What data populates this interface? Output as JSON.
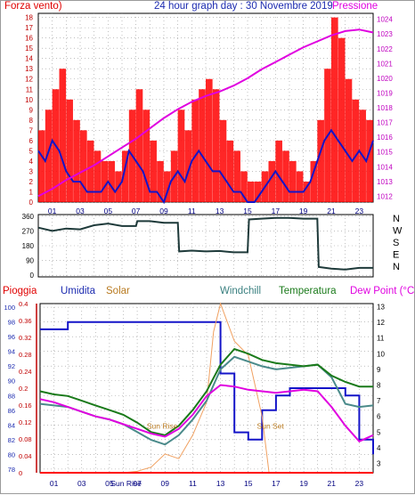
{
  "top": {
    "left_title": "Forza vento)",
    "center_title": "24 hour graph day : 30 Novembre 2019",
    "right_title": "Pressione"
  },
  "bottom": {
    "labels": {
      "rain": "Pioggia",
      "humidity": "Umidita",
      "solar": "Solar",
      "windchill": "Windchill",
      "temperature": "Temperatura",
      "dewpoint": "Dew Point (°C)"
    }
  },
  "chart_data": [
    {
      "type": "line",
      "x_tick_labels": [
        "01",
        "03",
        "05",
        "07",
        "09",
        "11",
        "13",
        "15",
        "17",
        "19",
        "21",
        "23"
      ],
      "yleft_ticks": [
        0,
        1,
        2,
        3,
        4,
        5,
        6,
        7,
        8,
        9,
        10,
        11,
        12,
        13,
        14,
        15,
        16,
        17,
        18
      ],
      "ylim_left": [
        0,
        18.4
      ],
      "yright_ticks": [
        1012,
        1013,
        1014,
        1015,
        1016,
        1017,
        1018,
        1019,
        1020,
        1021,
        1022,
        1023,
        1024
      ],
      "ylim_right": [
        1011.6,
        1024.4
      ],
      "colors": {
        "gust": "#ff0000",
        "wind": "#1414c8",
        "pressure": "#e000e0"
      },
      "series": [
        {
          "axis": "left",
          "role": "gust",
          "x": [
            0,
            0.5,
            1,
            1.5,
            2,
            2.5,
            3,
            3.5,
            4,
            4.5,
            5,
            5.5,
            6,
            6.5,
            7,
            7.5,
            8,
            8.5,
            9,
            9.5,
            10,
            10.5,
            11,
            11.5,
            12,
            12.5,
            13,
            13.5,
            14,
            14.5,
            15,
            15.5,
            16,
            16.5,
            17,
            17.5,
            18,
            18.5,
            19,
            19.5,
            20,
            20.5,
            21,
            21.5,
            22,
            22.5,
            23,
            23.5,
            24
          ],
          "values": [
            7,
            9,
            11,
            13,
            10,
            8,
            7,
            6,
            5,
            4,
            4,
            3,
            5,
            9,
            11,
            9,
            6,
            4,
            3,
            5,
            9,
            7,
            10,
            11,
            12,
            11,
            8,
            6,
            5,
            3,
            2,
            2,
            3,
            4,
            6,
            5,
            4,
            3,
            2,
            4,
            8,
            13,
            18,
            16,
            12,
            10,
            9,
            8,
            11
          ]
        },
        {
          "axis": "left",
          "role": "wind",
          "x": [
            0,
            0.5,
            1,
            1.5,
            2,
            2.5,
            3,
            3.5,
            4,
            4.5,
            5,
            5.5,
            6,
            6.5,
            7,
            7.5,
            8,
            8.5,
            9,
            9.5,
            10,
            10.5,
            11,
            11.5,
            12,
            12.5,
            13,
            13.5,
            14,
            14.5,
            15,
            15.5,
            16,
            16.5,
            17,
            17.5,
            18,
            18.5,
            19,
            19.5,
            20,
            20.5,
            21,
            21.5,
            22,
            22.5,
            23,
            23.5,
            24
          ],
          "values": [
            5,
            4,
            6,
            5,
            3,
            2,
            2,
            1,
            1,
            1,
            2,
            1,
            2,
            5,
            4,
            3,
            1,
            1,
            0,
            2,
            3,
            2,
            4,
            5,
            4,
            3,
            3,
            2,
            1,
            1,
            0,
            0,
            1,
            2,
            3,
            2,
            1,
            1,
            1,
            2,
            4,
            6,
            7,
            6,
            5,
            4,
            5,
            4,
            6
          ]
        },
        {
          "axis": "right",
          "role": "pressure",
          "x": [
            0,
            1,
            2,
            3,
            4,
            5,
            6,
            7,
            8,
            9,
            10,
            11,
            12,
            13,
            14,
            15,
            16,
            17,
            18,
            19,
            20,
            21,
            22,
            23,
            24
          ],
          "values": [
            1012.0,
            1012.5,
            1013.1,
            1013.6,
            1014.1,
            1014.7,
            1015.3,
            1015.9,
            1016.6,
            1017.3,
            1017.9,
            1018.4,
            1018.8,
            1019.1,
            1019.5,
            1020.0,
            1020.6,
            1021.1,
            1021.6,
            1022.1,
            1022.5,
            1022.9,
            1023.2,
            1023.3,
            1023.1
          ]
        }
      ]
    },
    {
      "type": "line",
      "x_tick_labels": [
        "01",
        "03",
        "05",
        "07",
        "09",
        "11",
        "13",
        "15",
        "17",
        "19",
        "21",
        "23"
      ],
      "yleft_ticks": [
        0,
        90,
        180,
        270,
        360
      ],
      "ylim": [
        -10,
        370
      ],
      "direction_labels": [
        "N",
        "W",
        "S",
        "E",
        "N"
      ],
      "colors": {
        "direction": "#1e3a3a"
      },
      "series": [
        {
          "role": "direction",
          "x": [
            0,
            1,
            2,
            3,
            4,
            5,
            6,
            7,
            7.1,
            8,
            9,
            10,
            10.1,
            11,
            12,
            13,
            14,
            15,
            15.1,
            16,
            17,
            18,
            19,
            20,
            20.1,
            21,
            22,
            23,
            24
          ],
          "values": [
            290,
            270,
            285,
            280,
            305,
            315,
            300,
            300,
            330,
            330,
            320,
            320,
            145,
            150,
            145,
            148,
            140,
            140,
            340,
            345,
            350,
            350,
            345,
            345,
            50,
            40,
            35,
            45,
            45
          ]
        }
      ]
    },
    {
      "type": "line",
      "x_tick_labels": [
        "01",
        "03",
        "05",
        "07",
        "09",
        "11",
        "13",
        "15",
        "17",
        "19",
        "21",
        "23"
      ],
      "bottom_tick_labels": {
        "left": "01",
        "mid_left": "03",
        "sun_rise": "05 Sun Rise",
        "right": "23"
      },
      "yleft_ticks": [
        78,
        80,
        82,
        84,
        86,
        88,
        90,
        92,
        94,
        96,
        98,
        100
      ],
      "ylim_humidity": [
        77.5,
        100.5
      ],
      "rain_ticks": [
        0,
        0.04,
        0.08,
        0.12,
        0.16,
        0.2,
        0.24,
        0.28,
        0.32,
        0.36,
        0.4
      ],
      "yright_ticks": [
        3,
        4,
        5,
        6,
        7,
        8,
        9,
        10,
        11,
        12,
        13
      ],
      "ylim_temp": [
        2.4,
        13.2
      ],
      "annotations": [
        "Sun Rise",
        "Sun Set"
      ],
      "colors": {
        "humidity": "#1414c8",
        "solar": "#f0a060",
        "windchill": "#4a8a8a",
        "temperature": "#1a7a1a",
        "dewpoint": "#e000e0",
        "rain": "#ff0000"
      },
      "series": [
        {
          "role": "humidity",
          "x": [
            0,
            1,
            2,
            3,
            4,
            5,
            6,
            7,
            8,
            9,
            10,
            11,
            12,
            13,
            14,
            15,
            16,
            17,
            18,
            19,
            20,
            21,
            22,
            23,
            24
          ],
          "values": [
            97,
            97,
            98,
            98,
            98,
            98,
            98,
            98,
            98,
            98,
            98,
            98,
            98,
            91,
            83,
            82,
            86,
            88,
            89,
            89,
            89,
            89,
            88,
            82,
            80
          ]
        },
        {
          "role": "solar",
          "x": [
            0,
            5,
            6,
            7,
            8,
            9,
            10,
            11,
            12,
            12.5,
            13,
            14,
            15,
            16,
            16.5,
            17,
            24
          ],
          "values": [
            0,
            0,
            0,
            3,
            12,
            40,
            30,
            80,
            150,
            300,
            360,
            280,
            250,
            120,
            0,
            0,
            0
          ]
        },
        {
          "role": "windchill",
          "x": [
            0,
            1,
            2,
            3,
            4,
            5,
            6,
            7,
            8,
            9,
            10,
            11,
            12,
            13,
            14,
            15,
            16,
            17,
            18,
            19,
            20,
            21,
            22,
            23,
            24
          ],
          "values": [
            6.8,
            6.7,
            6.6,
            6.3,
            6.0,
            5.8,
            5.5,
            5.0,
            4.5,
            4.2,
            4.8,
            5.8,
            7.0,
            9.0,
            9.8,
            9.5,
            9.2,
            9.0,
            9.1,
            9.2,
            9.3,
            8.5,
            6.8,
            6.6,
            6.7
          ]
        },
        {
          "role": "temperature",
          "x": [
            0,
            1,
            2,
            3,
            4,
            5,
            6,
            7,
            8,
            9,
            10,
            11,
            12,
            13,
            14,
            15,
            16,
            17,
            18,
            19,
            20,
            21,
            22,
            23,
            24
          ],
          "values": [
            7.6,
            7.4,
            7.3,
            7.0,
            6.7,
            6.4,
            6.1,
            5.6,
            5.0,
            4.8,
            5.4,
            6.4,
            7.6,
            9.3,
            10.3,
            10.0,
            9.6,
            9.4,
            9.3,
            9.2,
            9.3,
            8.6,
            8.2,
            7.9,
            7.9
          ]
        },
        {
          "role": "dewpoint",
          "x": [
            0,
            1,
            2,
            3,
            4,
            5,
            6,
            7,
            8,
            9,
            10,
            11,
            12,
            13,
            14,
            15,
            16,
            17,
            18,
            19,
            20,
            21,
            22,
            23,
            24
          ],
          "values": [
            7.1,
            6.9,
            6.6,
            6.3,
            6.0,
            5.8,
            5.5,
            5.2,
            4.9,
            4.7,
            5.2,
            6.1,
            7.3,
            8.0,
            7.9,
            7.7,
            7.6,
            7.5,
            7.6,
            7.7,
            7.6,
            6.6,
            5.4,
            4.4,
            4.8
          ]
        },
        {
          "role": "rain",
          "x": [
            0,
            24
          ],
          "values": [
            0,
            0
          ]
        }
      ]
    }
  ]
}
